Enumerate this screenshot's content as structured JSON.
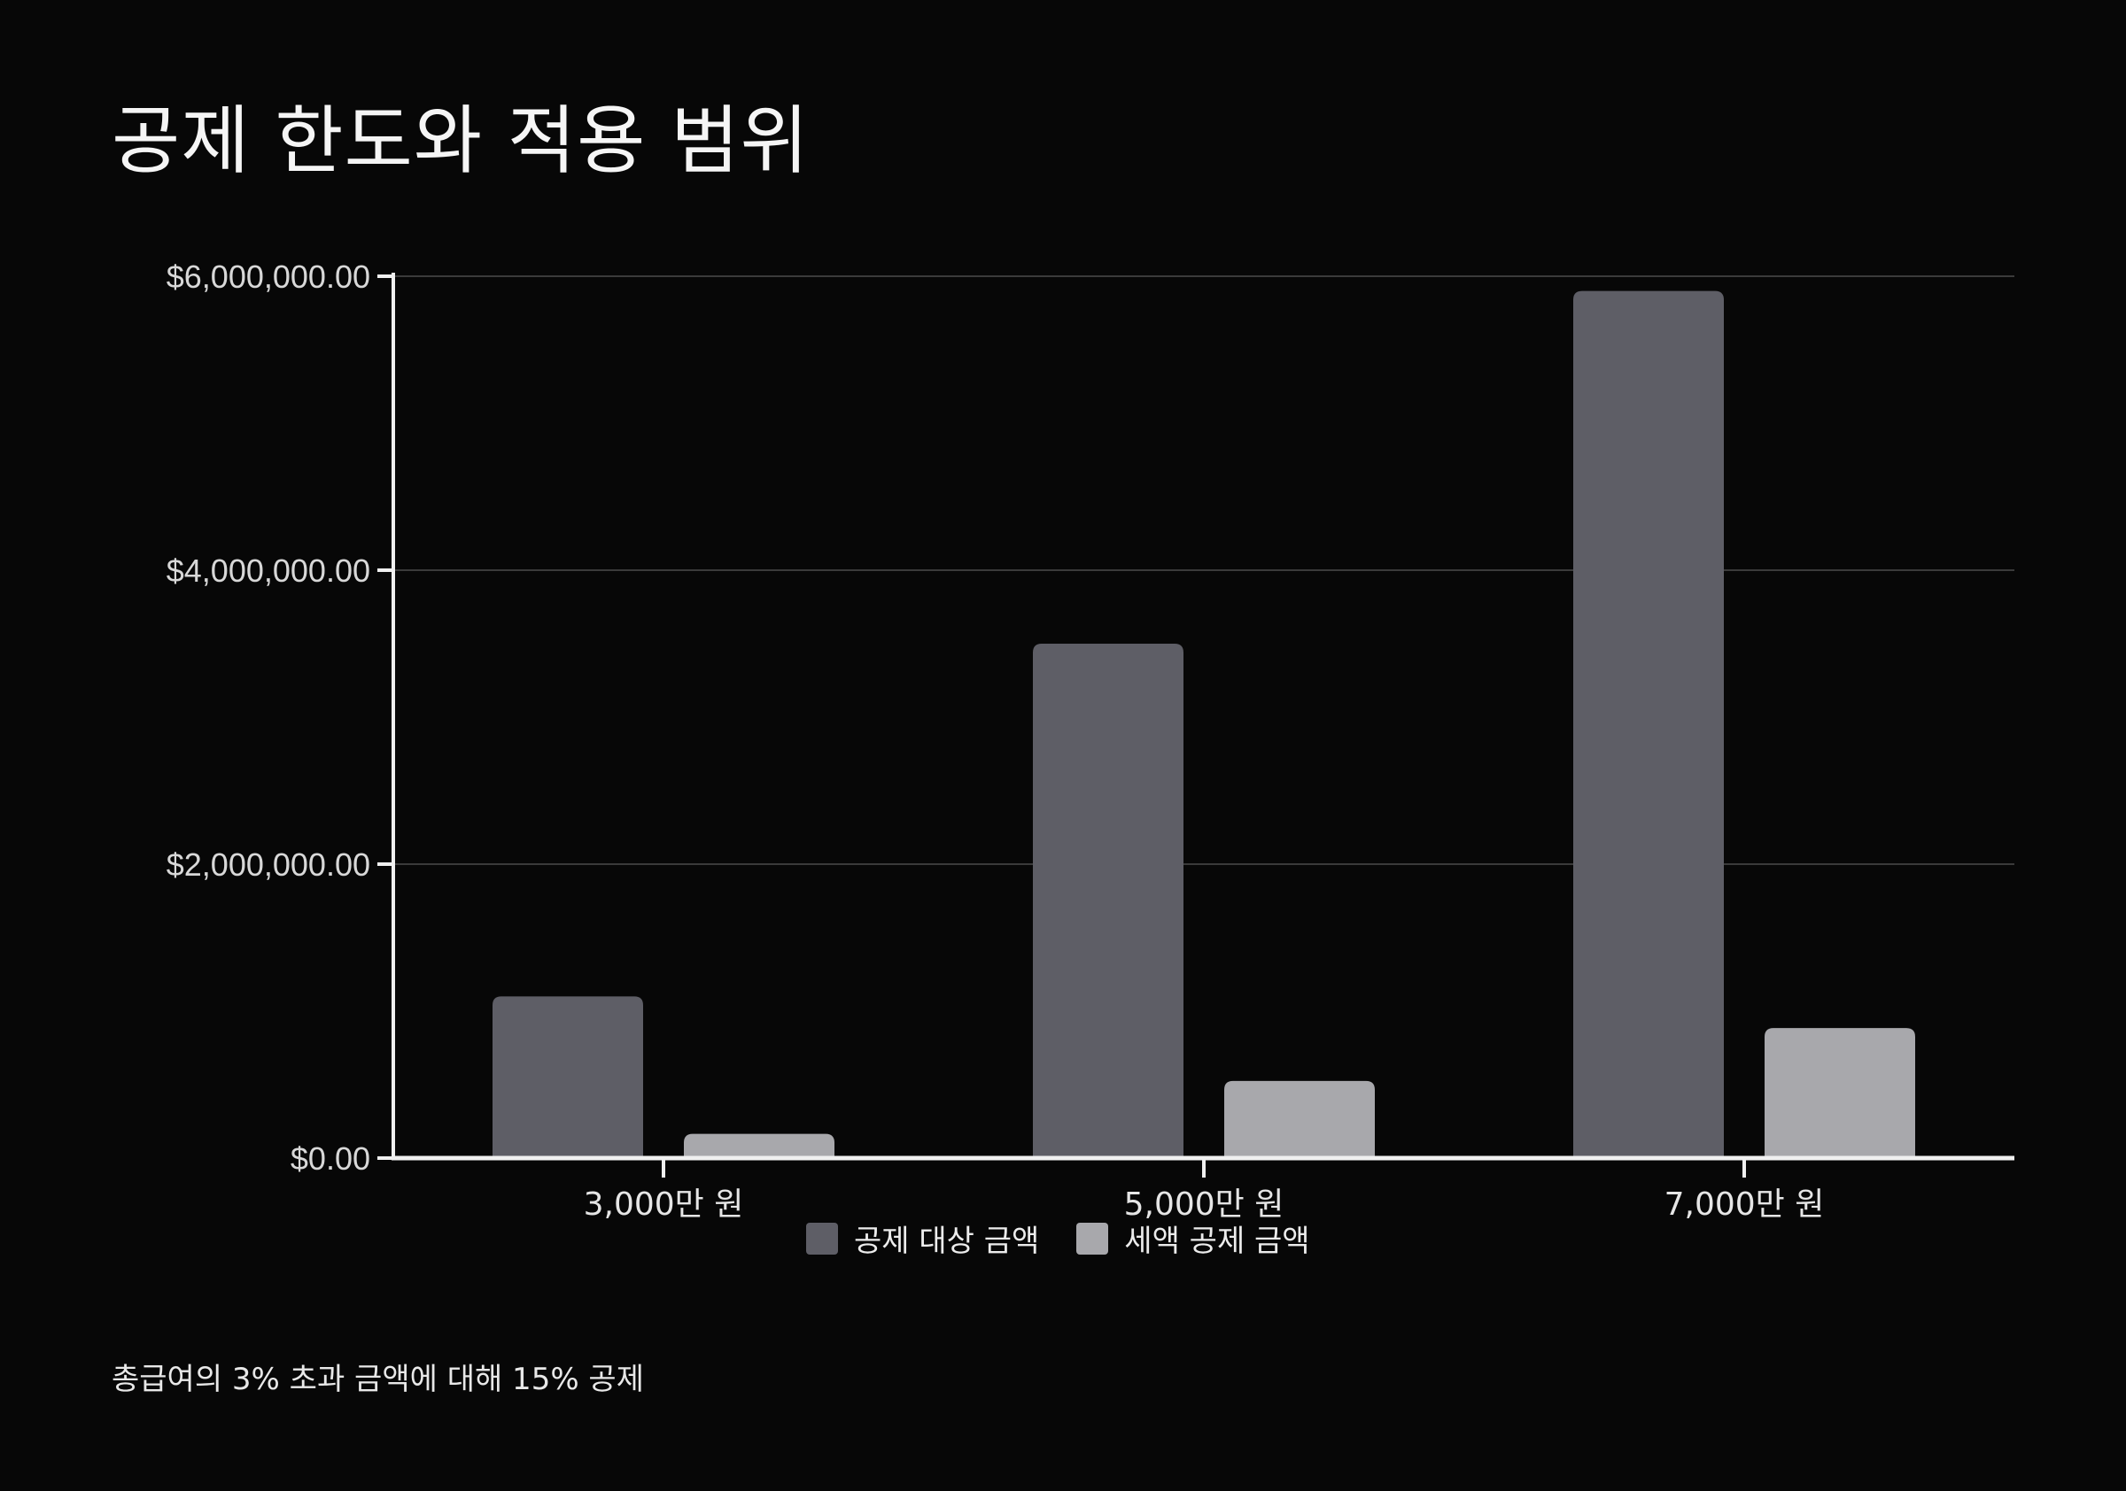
{
  "title": "공제 한도와 적용 범위",
  "footnote": "총급여의 3% 초과 금액에 대해 15% 공제",
  "colors": {
    "background": "#070707",
    "series_1": "#5e5e66",
    "series_2": "#a8a8ac",
    "axis": "#f0f0f0",
    "grid": "#3a3a3a"
  },
  "chart_data": {
    "type": "bar",
    "categories": [
      "3,000만 원",
      "5,000만 원",
      "7,000만 원"
    ],
    "series": [
      {
        "name": "공제 대상 금액",
        "values": [
          1100000,
          3500000,
          5900000
        ]
      },
      {
        "name": "세액 공제 금액",
        "values": [
          165000,
          525000,
          885000
        ]
      }
    ],
    "yticks": [
      {
        "value": 0,
        "label": "$0.00"
      },
      {
        "value": 2000000,
        "label": "$2,000,000.00"
      },
      {
        "value": 4000000,
        "label": "$4,000,000.00"
      },
      {
        "value": 6000000,
        "label": "$6,000,000.00"
      }
    ],
    "ylim": [
      0,
      6000000
    ],
    "grid": true,
    "legend_position": "bottom-center"
  }
}
